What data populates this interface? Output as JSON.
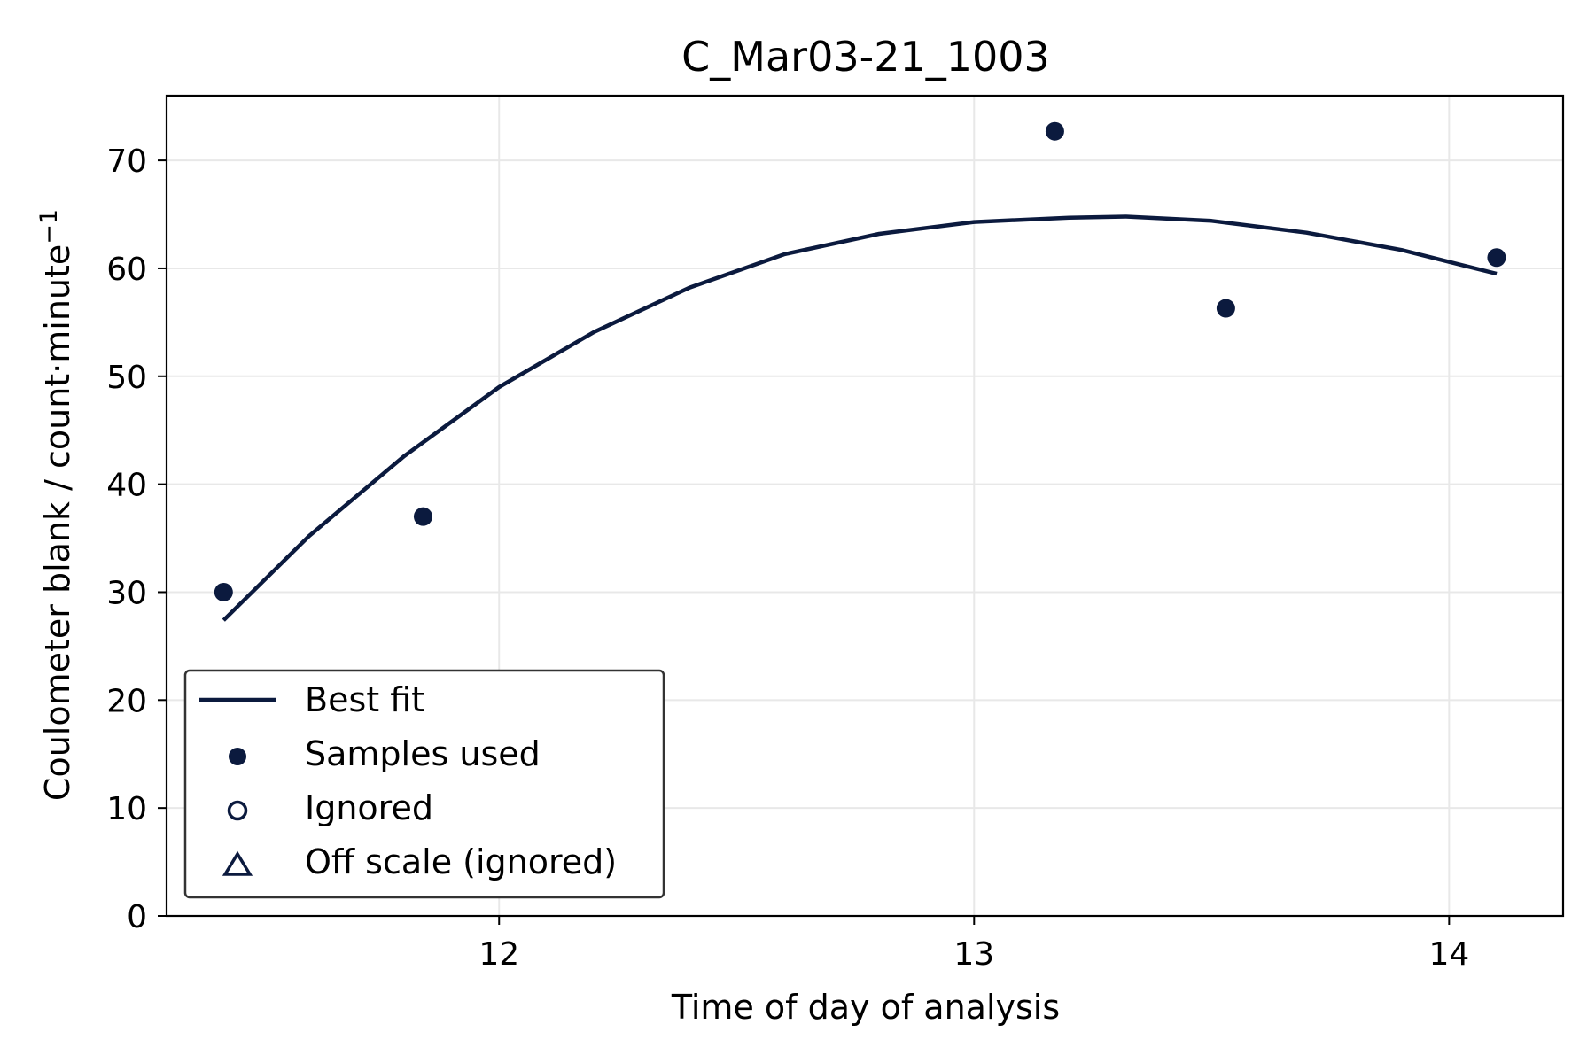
{
  "chart_data": {
    "type": "scatter",
    "title": "C_Mar03-21_1003",
    "xlabel": "Time of day of analysis",
    "ylabel_main": "Coulometer blank / count·minute",
    "ylabel_sup": "−1",
    "xlim": [
      11.3,
      14.24
    ],
    "ylim": [
      0,
      76
    ],
    "xticks": [
      12,
      13,
      14
    ],
    "yticks": [
      0,
      10,
      20,
      30,
      40,
      50,
      60,
      70
    ],
    "grid": true,
    "legend_position": "lower-left",
    "colors": {
      "series": "#0b1a3e",
      "grid": "#e8e8e8",
      "axes": "#000000",
      "legend_border": "#333333"
    },
    "series": [
      {
        "name": "Best fit",
        "kind": "line",
        "x": [
          11.42,
          11.6,
          11.8,
          12.0,
          12.2,
          12.4,
          12.6,
          12.8,
          13.0,
          13.2,
          13.32,
          13.5,
          13.7,
          13.9,
          14.1
        ],
        "y": [
          27.4,
          35.2,
          42.6,
          49.0,
          54.1,
          58.2,
          61.3,
          63.2,
          64.3,
          64.7,
          64.8,
          64.4,
          63.3,
          61.7,
          59.5
        ]
      },
      {
        "name": "Samples used",
        "kind": "scatter",
        "marker": "filled-circle",
        "x": [
          11.42,
          11.84,
          13.17,
          13.53,
          14.1
        ],
        "y": [
          30.0,
          37.0,
          72.7,
          56.3,
          61.0
        ]
      },
      {
        "name": "Ignored",
        "kind": "scatter",
        "marker": "open-circle",
        "x": [],
        "y": []
      },
      {
        "name": "Off scale (ignored)",
        "kind": "scatter",
        "marker": "open-triangle",
        "x": [],
        "y": []
      }
    ]
  }
}
